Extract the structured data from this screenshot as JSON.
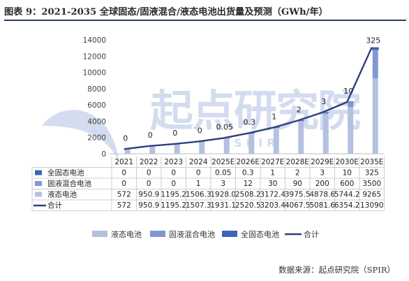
{
  "figure_title": "图表 9：2021-2035 全球固态/固液混合/液态电池出货量及预测（GWh/年）",
  "source_text": "数据来源：起点研究院（SPIR）",
  "watermark_text": "起点研究院",
  "watermark_sub": "SPIR",
  "colors": {
    "liquid": "#b4c0e0",
    "semi": "#7f97d3",
    "solid": "#3d63b8",
    "total": "#2e3f7f",
    "axis": "#bfbfbf",
    "table_border": "#bfbfbf"
  },
  "chart_data": {
    "type": "bar",
    "categories": [
      "2021",
      "2022",
      "2023",
      "2024",
      "2025E",
      "2026E",
      "2027E",
      "2028E",
      "2029E",
      "2030E",
      "2035E"
    ],
    "series": [
      {
        "name": "全固态电池",
        "type": "bar",
        "values": [
          0,
          0,
          0,
          0,
          0.05,
          0.3,
          1,
          2,
          3,
          10,
          325
        ],
        "display": [
          "0",
          "0",
          "0",
          "0",
          "0.05",
          "0.3",
          "1",
          "2",
          "3",
          "10",
          "325"
        ]
      },
      {
        "name": "固液混合电池",
        "type": "bar",
        "values": [
          0,
          0,
          0,
          1,
          3,
          12,
          30,
          90,
          200,
          600,
          3500
        ],
        "display": [
          "0",
          "0",
          "0",
          "1",
          "3",
          "12",
          "30",
          "90",
          "200",
          "600",
          "3500"
        ]
      },
      {
        "name": "液态电池",
        "type": "bar",
        "values": [
          572,
          950.9,
          1195.2,
          1506.3,
          1928.0,
          2508.2,
          3172.4,
          3975.5,
          4878.6,
          5744.2,
          9265
        ],
        "display": [
          "572",
          "950.9",
          "1195.2",
          "1506.3",
          "1928.0",
          "2508.2",
          "3172.4",
          "3975.5",
          "4878.6",
          "5744.2",
          "9265"
        ]
      },
      {
        "name": "合计",
        "type": "line",
        "values": [
          572,
          950.9,
          1195.2,
          1507.3,
          1931.1,
          2520.5,
          3203.4,
          4067.5,
          5081.6,
          6354.2,
          13090
        ],
        "display": [
          "572",
          "950.9",
          "1195.2",
          "1507.3",
          "1931.1",
          "2520.5",
          "3203.4",
          "4067.5",
          "5081.6",
          "6354.2",
          "13090"
        ]
      }
    ],
    "data_labels": {
      "series": "全固态电池",
      "values": [
        "0",
        "0",
        "0",
        "0",
        "0.05",
        "0.3",
        "1",
        "2",
        "3",
        "10",
        "325"
      ]
    },
    "yticks": [
      "0",
      "2000",
      "4000",
      "6000",
      "8000",
      "10000",
      "12000",
      "14000"
    ],
    "ylim": [
      0,
      14000
    ],
    "legend_position": "bottom",
    "data_table": true,
    "grid": false
  }
}
